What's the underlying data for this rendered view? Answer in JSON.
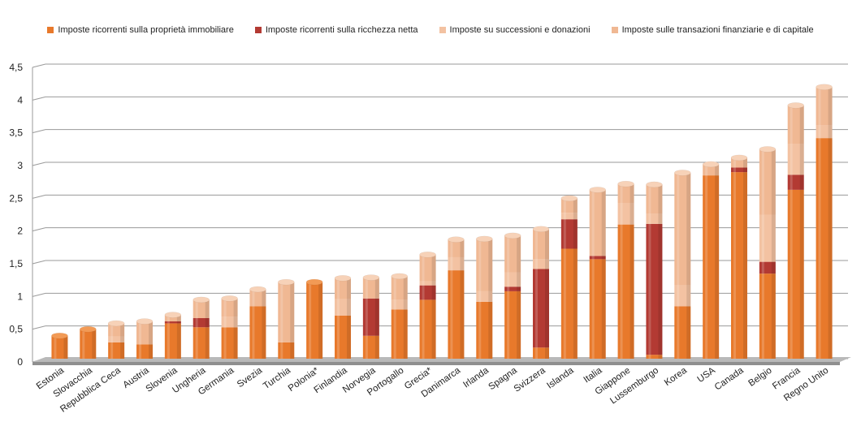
{
  "chart_data": {
    "type": "bar",
    "stacked": true,
    "title": "",
    "xlabel": "",
    "ylabel": "",
    "ylim": [
      0,
      4.5
    ],
    "yticks": [
      "0",
      "0,5",
      "1",
      "1,5",
      "2",
      "2,5",
      "3",
      "3,5",
      "4",
      "4,5"
    ],
    "grid": true,
    "legend_position": "top",
    "categories": [
      "Estonia",
      "Slovacchia",
      "Repubblica Ceca",
      "Austria",
      "Slovenia",
      "Ungheria",
      "Germania",
      "Svezia",
      "Turchia",
      "Polonia*",
      "Finlandia",
      "Norvegia",
      "Portogallo",
      "Grecia*",
      "Danimarca",
      "Irlanda",
      "Spagna",
      "Svizzera",
      "Islanda",
      "Italia",
      "Giappone",
      "Lussemburgo",
      "Korea",
      "USA",
      "Canada",
      "Belgio",
      "Francia",
      "Regno Unito"
    ],
    "series": [
      {
        "name": "Imposte ricorrenti sulla proprietà immobiliare",
        "color": "#e8792b",
        "top_color": "#f29a55",
        "values": [
          0.35,
          0.45,
          0.25,
          0.22,
          0.54,
          0.48,
          0.48,
          0.8,
          0.25,
          1.17,
          0.66,
          0.35,
          0.75,
          0.9,
          1.35,
          0.87,
          1.03,
          0.17,
          1.68,
          1.52,
          2.05,
          0.06,
          0.8,
          2.8,
          2.85,
          1.3,
          2.58,
          3.37
        ]
      },
      {
        "name": "Imposte ricorrenti sulla ricchezza netta",
        "color": "#b33a33",
        "top_color": "#d05a52",
        "values": [
          0,
          0,
          0,
          0,
          0.03,
          0.14,
          0,
          0,
          0,
          0,
          0,
          0.57,
          0,
          0.22,
          0,
          0,
          0.07,
          1.2,
          0.45,
          0.05,
          0,
          2.0,
          0,
          0,
          0.07,
          0.18,
          0.23,
          0
        ]
      },
      {
        "name": "Imposte su successioni e donazioni",
        "color": "#f3c2a2",
        "top_color": "#f8d8c2",
        "values": [
          0,
          0,
          0.09,
          0,
          0,
          0,
          0.16,
          0,
          0,
          0,
          0.25,
          0,
          0.15,
          0.06,
          0.2,
          0.16,
          0.22,
          0.15,
          0.1,
          0,
          0.33,
          0.15,
          0.32,
          0,
          0,
          0.72,
          0.47,
          0.2
        ]
      },
      {
        "name": "Imposte sulle transazioni finanziarie e di capitale",
        "color": "#f0b893",
        "top_color": "#f7d2b8",
        "values": [
          0,
          0,
          0.2,
          0.35,
          0.1,
          0.28,
          0.28,
          0.26,
          0.92,
          0,
          0.32,
          0.32,
          0.36,
          0.41,
          0.27,
          0.8,
          0.56,
          0.46,
          0.22,
          1.01,
          0.29,
          0.45,
          1.72,
          0.17,
          0.15,
          1.0,
          0.59,
          0.58
        ]
      }
    ]
  }
}
